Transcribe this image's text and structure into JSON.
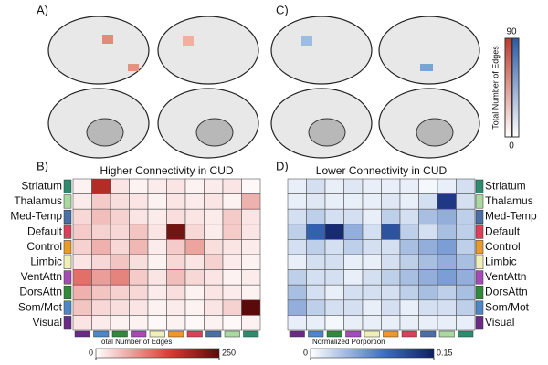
{
  "panels": [
    "A)",
    "B)",
    "C)",
    "D)"
  ],
  "brain_colorbar": {
    "label": "Total Number of Edges",
    "ticks": [
      0,
      90
    ]
  },
  "chart_data": [
    {
      "type": "heatmap",
      "title": "Higher Connectivity in CUD",
      "rows": [
        "Striatum",
        "Thalamus",
        "Med-Temp",
        "Default",
        "Control",
        "Limbic",
        "VentAttn",
        "DorsAttn",
        "Som/Mot",
        "Visual"
      ],
      "row_colors": [
        "#2e8b6e",
        "#a9d8a0",
        "#4a6fa5",
        "#d9415a",
        "#e89a2c",
        "#eef0b8",
        "#a54bb5",
        "#2f8a3a",
        "#4f86c6",
        "#6a2a86"
      ],
      "column_colors": [
        "#6a2a86",
        "#4f86c6",
        "#2f8a3a",
        "#a54bb5",
        "#eef0b8",
        "#e89a2c",
        "#d9415a",
        "#4a6fa5",
        "#a9d8a0",
        "#2e8b6e"
      ],
      "colormap": "reds",
      "values": [
        [
          10,
          180,
          20,
          10,
          15,
          20,
          10,
          15,
          20,
          5
        ],
        [
          15,
          40,
          25,
          20,
          10,
          20,
          15,
          20,
          10,
          60
        ],
        [
          30,
          50,
          35,
          20,
          15,
          25,
          20,
          15,
          40,
          20
        ],
        [
          40,
          35,
          30,
          45,
          20,
          230,
          30,
          15,
          40,
          20
        ],
        [
          35,
          60,
          30,
          55,
          15,
          40,
          70,
          25,
          20,
          15
        ],
        [
          20,
          30,
          45,
          25,
          10,
          30,
          20,
          35,
          15,
          10
        ],
        [
          110,
          75,
          95,
          40,
          20,
          50,
          30,
          20,
          10,
          15
        ],
        [
          60,
          45,
          35,
          30,
          15,
          25,
          10,
          20,
          15,
          10
        ],
        [
          45,
          30,
          25,
          20,
          10,
          15,
          10,
          20,
          35,
          250
        ],
        [
          20,
          15,
          10,
          10,
          5,
          10,
          5,
          10,
          5,
          10
        ]
      ],
      "colorbar_label": "Total Number of Edges",
      "zlim": [
        0,
        250
      ],
      "zticks": [
        0,
        250
      ]
    },
    {
      "type": "heatmap",
      "title": "Lower Connectivity in CUD",
      "rows": [
        "Striatum",
        "Thalamus",
        "Med-Temp",
        "Default",
        "Control",
        "Limbic",
        "VentAttn",
        "DorsAttn",
        "Som/Mot",
        "Visual"
      ],
      "row_colors": [
        "#2e8b6e",
        "#a9d8a0",
        "#4a6fa5",
        "#d9415a",
        "#e89a2c",
        "#eef0b8",
        "#a54bb5",
        "#2f8a3a",
        "#4f86c6",
        "#6a2a86"
      ],
      "column_colors": [
        "#6a2a86",
        "#4f86c6",
        "#2f8a3a",
        "#a54bb5",
        "#eef0b8",
        "#e89a2c",
        "#d9415a",
        "#4a6fa5",
        "#a9d8a0",
        "#2e8b6e"
      ],
      "colormap": "blues",
      "values": [
        [
          0.01,
          0.02,
          0.01,
          0.015,
          0.01,
          0.01,
          0.01,
          0.005,
          0.01,
          0.02
        ],
        [
          0.01,
          0.015,
          0.01,
          0.01,
          0.01,
          0.015,
          0.01,
          0.02,
          0.13,
          0.02
        ],
        [
          0.02,
          0.03,
          0.02,
          0.02,
          0.01,
          0.03,
          0.02,
          0.04,
          0.05,
          0.03
        ],
        [
          0.03,
          0.1,
          0.14,
          0.05,
          0.02,
          0.11,
          0.03,
          0.02,
          0.04,
          0.03
        ],
        [
          0.02,
          0.03,
          0.02,
          0.03,
          0.02,
          0.02,
          0.04,
          0.05,
          0.06,
          0.03
        ],
        [
          0.01,
          0.02,
          0.02,
          0.01,
          0.01,
          0.02,
          0.03,
          0.04,
          0.05,
          0.04
        ],
        [
          0.03,
          0.02,
          0.02,
          0.01,
          0.02,
          0.03,
          0.04,
          0.05,
          0.06,
          0.05
        ],
        [
          0.04,
          0.02,
          0.01,
          0.02,
          0.02,
          0.02,
          0.03,
          0.04,
          0.03,
          0.04
        ],
        [
          0.05,
          0.03,
          0.02,
          0.02,
          0.01,
          0.02,
          0.01,
          0.02,
          0.02,
          0.03
        ],
        [
          0.01,
          0.01,
          0.005,
          0.01,
          0.01,
          0.01,
          0.01,
          0.01,
          0.01,
          0.01
        ]
      ],
      "colorbar_label": "Normalized Porportion",
      "zlim": [
        0,
        0.15
      ],
      "zticks": [
        0,
        0.15
      ]
    }
  ]
}
